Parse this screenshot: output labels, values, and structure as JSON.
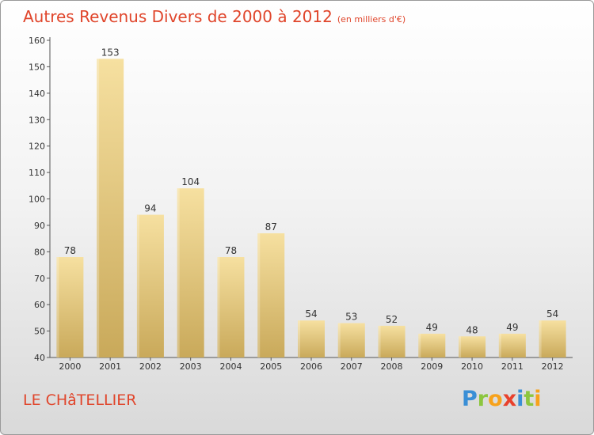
{
  "header": {
    "title": "Autres Revenus Divers de 2000 à 2012",
    "subtitle": "(en milliers d'€)"
  },
  "footer": {
    "city": "LE CHâTELLIER"
  },
  "logo": {
    "text": "Proxiti",
    "letters": [
      {
        "ch": "P",
        "color": "#3a8fd6"
      },
      {
        "ch": "r",
        "color": "#8cc63f"
      },
      {
        "ch": "o",
        "color": "#f7a21b"
      },
      {
        "ch": "x",
        "color": "#e8412c"
      },
      {
        "ch": "i",
        "color": "#3a8fd6"
      },
      {
        "ch": "t",
        "color": "#8cc63f"
      },
      {
        "ch": "i",
        "color": "#f7a21b"
      }
    ]
  },
  "colors": {
    "accent": "#e0452b",
    "bar_top": "#f6e0a0",
    "bar_bottom": "#c9a95a",
    "axis": "#555555"
  },
  "chart_data": {
    "type": "bar",
    "title": "Autres Revenus Divers de 2000 à 2012",
    "subtitle": "(en milliers d'€)",
    "categories": [
      "2000",
      "2001",
      "2002",
      "2003",
      "2004",
      "2005",
      "2006",
      "2007",
      "2008",
      "2009",
      "2010",
      "2011",
      "2012"
    ],
    "values": [
      78,
      153,
      94,
      104,
      78,
      87,
      54,
      53,
      52,
      49,
      48,
      49,
      54
    ],
    "ylim": [
      40,
      160
    ],
    "yticks": [
      40,
      50,
      60,
      70,
      80,
      90,
      100,
      110,
      120,
      130,
      140,
      150,
      160
    ],
    "xlabel": "",
    "ylabel": "",
    "grid": false
  }
}
